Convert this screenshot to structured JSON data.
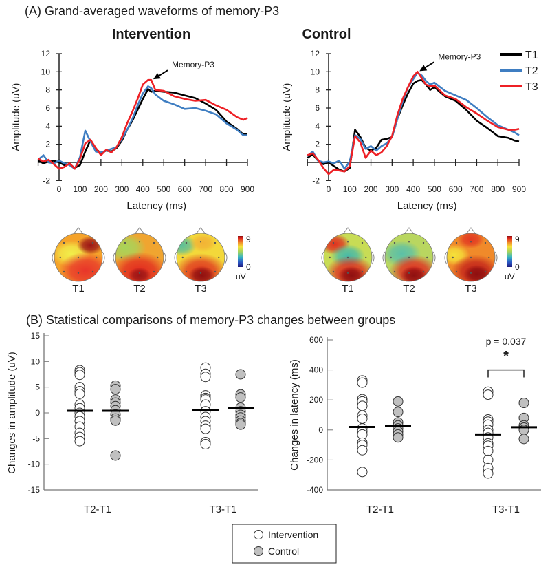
{
  "panel_a": {
    "title": "(A) Grand-averaged waveforms of memory-P3",
    "legend": [
      {
        "label": "T1",
        "color": "#000000"
      },
      {
        "label": "T2",
        "color": "#3f7ec2"
      },
      {
        "label": "T3",
        "color": "#ee2025"
      }
    ],
    "topomap_colorbar": {
      "max_label": "9",
      "min_label": "0",
      "unit": "uV"
    },
    "topomap_labels": [
      "T1",
      "T2",
      "T3"
    ]
  },
  "panel_b": {
    "title": "(B) Statistical comparisons of memory-P3 changes between groups",
    "legend": [
      {
        "label": "Intervention",
        "fill": "#ffffff"
      },
      {
        "label": "Control",
        "fill": "#c0c0c0"
      }
    ]
  },
  "chart_data": [
    {
      "type": "line",
      "title": "Intervention",
      "xlabel": "Latency (ms)",
      "ylabel": "Amplitude (uV)",
      "xlim": [
        -100,
        900
      ],
      "ylim": [
        -2,
        12
      ],
      "xticks": [
        0,
        100,
        200,
        300,
        400,
        500,
        600,
        700,
        800,
        900
      ],
      "yticks": [
        -2,
        2,
        4,
        6,
        8,
        10,
        12
      ],
      "annotation": {
        "text": "Memory-P3",
        "x": 440,
        "y": 9.1
      },
      "x": [
        -100,
        -75,
        -50,
        -25,
        0,
        25,
        50,
        75,
        100,
        125,
        150,
        175,
        200,
        225,
        250,
        275,
        300,
        325,
        350,
        375,
        400,
        425,
        440,
        460,
        500,
        550,
        600,
        650,
        700,
        750,
        800,
        850,
        880,
        900
      ],
      "series": [
        {
          "name": "T1",
          "values": [
            0.2,
            -0.1,
            0.1,
            0.2,
            0.0,
            -0.3,
            -0.2,
            -0.6,
            -0.3,
            1.2,
            2.5,
            1.5,
            1.0,
            1.3,
            1.2,
            1.6,
            2.4,
            3.6,
            4.6,
            5.8,
            7.0,
            8.1,
            7.8,
            7.9,
            7.8,
            7.7,
            7.4,
            7.1,
            6.5,
            5.8,
            4.5,
            3.7,
            3.1,
            3.1
          ]
        },
        {
          "name": "T2",
          "values": [
            0.3,
            0.8,
            0.0,
            -0.1,
            0.2,
            -0.1,
            -0.3,
            -0.7,
            0.6,
            3.5,
            2.3,
            1.2,
            1.1,
            1.3,
            1.5,
            1.7,
            2.6,
            3.6,
            4.8,
            6.3,
            7.6,
            8.4,
            8.2,
            7.5,
            6.8,
            6.4,
            5.9,
            6.0,
            5.7,
            5.3,
            4.3,
            3.6,
            3.0,
            3.0
          ]
        },
        {
          "name": "T3",
          "values": [
            0.4,
            0.1,
            0.3,
            -0.2,
            -0.7,
            -0.5,
            -0.1,
            -0.7,
            0.4,
            2.1,
            2.5,
            1.6,
            0.8,
            1.4,
            1.1,
            1.7,
            2.8,
            4.3,
            5.6,
            7.0,
            8.6,
            9.1,
            9.1,
            8.0,
            7.9,
            7.3,
            7.0,
            6.8,
            6.9,
            6.3,
            5.8,
            5.0,
            4.7,
            4.9
          ]
        }
      ]
    },
    {
      "type": "line",
      "title": "Control",
      "xlabel": "Latency (ms)",
      "ylabel": "Amplitude (uV)",
      "xlim": [
        -100,
        900
      ],
      "ylim": [
        -2,
        12
      ],
      "xticks": [
        0,
        100,
        200,
        300,
        400,
        500,
        600,
        700,
        800,
        900
      ],
      "yticks": [
        -2,
        2,
        4,
        6,
        8,
        10,
        12
      ],
      "legend_position": "top-right",
      "annotation": {
        "text": "Memory-P3",
        "x": 420,
        "y": 10.0
      },
      "x": [
        -100,
        -75,
        -50,
        -25,
        0,
        25,
        50,
        75,
        100,
        125,
        150,
        175,
        200,
        225,
        250,
        275,
        300,
        325,
        350,
        375,
        400,
        420,
        440,
        460,
        480,
        500,
        550,
        600,
        650,
        700,
        750,
        800,
        850,
        880,
        900
      ],
      "series": [
        {
          "name": "T1",
          "values": [
            0.5,
            0.9,
            0.2,
            -0.2,
            0.0,
            -0.4,
            -0.8,
            -1.0,
            -0.6,
            3.6,
            2.8,
            1.6,
            1.3,
            1.6,
            2.5,
            2.6,
            2.8,
            4.8,
            6.3,
            7.6,
            8.7,
            9.0,
            9.1,
            8.6,
            8.0,
            8.3,
            7.3,
            6.8,
            5.8,
            4.6,
            3.8,
            2.9,
            2.7,
            2.4,
            2.3
          ]
        },
        {
          "name": "T2",
          "values": [
            0.7,
            1.2,
            0.2,
            0.0,
            0.1,
            -0.1,
            0.2,
            -0.7,
            0.1,
            3.0,
            2.6,
            1.5,
            1.8,
            1.3,
            1.8,
            2.1,
            2.8,
            4.8,
            6.7,
            8.3,
            9.2,
            9.9,
            9.6,
            9.0,
            8.6,
            8.8,
            7.9,
            7.4,
            6.9,
            6.0,
            5.0,
            4.1,
            3.6,
            3.3,
            3.0
          ]
        },
        {
          "name": "T3",
          "values": [
            0.8,
            1.0,
            0.3,
            -0.6,
            -1.3,
            -0.8,
            -0.9,
            -1.0,
            -0.4,
            2.9,
            2.2,
            0.5,
            1.3,
            0.8,
            1.1,
            1.8,
            2.9,
            5.2,
            7.0,
            8.3,
            9.5,
            10.0,
            9.3,
            8.6,
            8.4,
            8.5,
            7.4,
            7.0,
            6.1,
            5.4,
            4.6,
            3.9,
            3.6,
            3.6,
            3.7
          ]
        }
      ]
    },
    {
      "type": "scatter",
      "ylabel": "Changes in amplitude (uV)",
      "ylim": [
        -15,
        15
      ],
      "yticks": [
        -15,
        -10,
        -5,
        0,
        5,
        10,
        15
      ],
      "categories": [
        "T2-T1",
        "T3-T1"
      ],
      "series": [
        {
          "name": "Intervention",
          "fill": "#ffffff",
          "points": [
            [
              8.3,
              7.9,
              7.4,
              5.0,
              4.2,
              3.7,
              1.6,
              0.9,
              0.0,
              -0.7,
              -1.6,
              -2.7,
              -3.9,
              -4.7,
              -5.5
            ],
            [
              8.8,
              7.6,
              7.0,
              3.4,
              2.9,
              2.6,
              1.6,
              0.3,
              -0.8,
              -1.6,
              -2.5,
              -3.1,
              -5.7,
              -6.1
            ]
          ],
          "means": [
            0.4,
            0.5
          ]
        },
        {
          "name": "Control",
          "fill": "#c0c0c0",
          "points": [
            [
              5.3,
              4.6,
              2.6,
              2.0,
              1.3,
              0.5,
              -0.3,
              -1.1,
              -1.5,
              -8.3
            ],
            [
              7.5,
              3.6,
              3.0,
              1.0,
              0.3,
              -0.4,
              -0.9,
              -1.5,
              -2.0,
              -2.3
            ]
          ],
          "means": [
            0.4,
            1.0
          ]
        }
      ]
    },
    {
      "type": "scatter",
      "ylabel": "Changes in latency (ms)",
      "ylim": [
        -400,
        600
      ],
      "yticks": [
        -400,
        -200,
        0,
        200,
        400,
        600
      ],
      "categories": [
        "T2-T1",
        "T3-T1"
      ],
      "annotation": {
        "text": "p = 0.037",
        "marker": "*",
        "category": "T3-T1"
      },
      "series": [
        {
          "name": "Intervention",
          "fill": "#ffffff",
          "points": [
            [
              330,
              315,
              205,
              190,
              160,
              95,
              75,
              10,
              -10,
              -30,
              -85,
              -100,
              -135,
              -280
            ],
            [
              255,
              235,
              70,
              55,
              35,
              0,
              -20,
              -50,
              -90,
              -105,
              -140,
              -200,
              -255,
              -290
            ]
          ],
          "means": [
            20,
            -30
          ]
        },
        {
          "name": "Control",
          "fill": "#c0c0c0",
          "points": [
            [
              190,
              120,
              50,
              30,
              10,
              -10,
              -30,
              -50
            ],
            [
              180,
              80,
              30,
              15,
              0,
              -60
            ]
          ],
          "means": [
            28,
            18
          ]
        }
      ]
    }
  ]
}
